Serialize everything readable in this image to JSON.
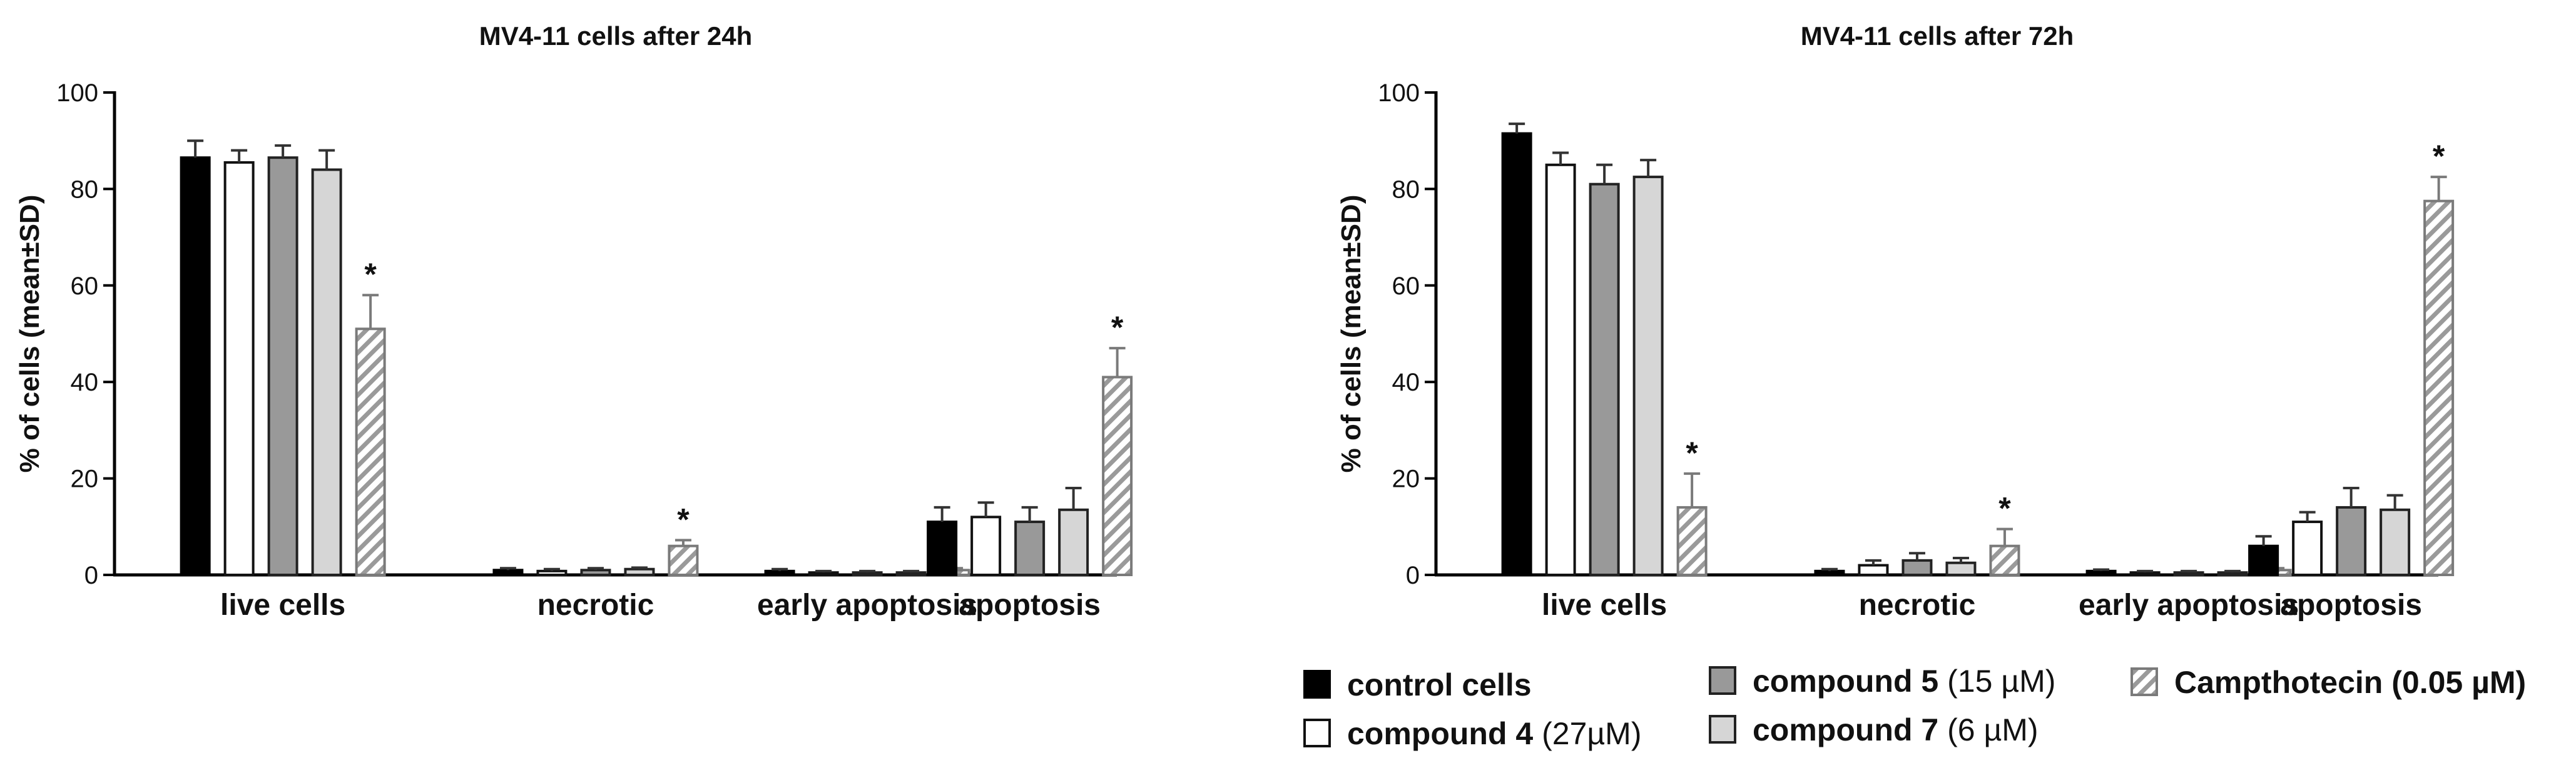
{
  "chart_data": [
    {
      "type": "bar",
      "title": "MV4-11 cells after 24h",
      "xlabel": "",
      "ylabel": "% of cells (mean±SD)",
      "ylim": [
        0,
        100
      ],
      "yticks": [
        "0",
        "20",
        "40",
        "60",
        "80",
        "100"
      ],
      "categories": [
        "live cells",
        "necrotic",
        "early apoptosis",
        "apoptosis"
      ],
      "series": [
        {
          "name": "control cells",
          "values": [
            86.5,
            1.0,
            0.8,
            11.0
          ],
          "errors": [
            3.5,
            0.4,
            0.4,
            3.0
          ],
          "stars": [
            false,
            false,
            false,
            false
          ]
        },
        {
          "name": "compound 4",
          "values": [
            85.5,
            0.8,
            0.5,
            12.0
          ],
          "errors": [
            2.5,
            0.4,
            0.3,
            3.0
          ],
          "stars": [
            false,
            false,
            false,
            false
          ]
        },
        {
          "name": "compound 5",
          "values": [
            86.5,
            1.0,
            0.5,
            11.0
          ],
          "errors": [
            2.5,
            0.4,
            0.3,
            3.0
          ],
          "stars": [
            false,
            false,
            false,
            false
          ]
        },
        {
          "name": "compound 7",
          "values": [
            84.0,
            1.2,
            0.5,
            13.5
          ],
          "errors": [
            4.0,
            0.3,
            0.3,
            4.5
          ],
          "stars": [
            false,
            false,
            false,
            false
          ]
        },
        {
          "name": "Campthotecin (0.05 µM)",
          "values": [
            51.0,
            6.0,
            1.0,
            41.0
          ],
          "errors": [
            7.0,
            1.2,
            0.4,
            6.0
          ],
          "stars": [
            true,
            true,
            false,
            true
          ]
        }
      ]
    },
    {
      "type": "bar",
      "title": "MV4-11 cells after 72h",
      "xlabel": "",
      "ylabel": "% of cells (mean±SD)",
      "ylim": [
        0,
        100
      ],
      "yticks": [
        "0",
        "20",
        "40",
        "60",
        "80",
        "100"
      ],
      "categories": [
        "live cells",
        "necrotic",
        "early apoptosis",
        "apoptosis"
      ],
      "series": [
        {
          "name": "control cells",
          "values": [
            91.5,
            0.8,
            0.8,
            6.0
          ],
          "errors": [
            2.0,
            0.4,
            0.3,
            2.0
          ],
          "stars": [
            false,
            false,
            false,
            false
          ]
        },
        {
          "name": "compound 4",
          "values": [
            85.0,
            2.0,
            0.5,
            11.0
          ],
          "errors": [
            2.5,
            1.0,
            0.3,
            2.0
          ],
          "stars": [
            false,
            false,
            false,
            false
          ]
        },
        {
          "name": "compound 5",
          "values": [
            81.0,
            3.0,
            0.5,
            14.0
          ],
          "errors": [
            4.0,
            1.5,
            0.3,
            4.0
          ],
          "stars": [
            false,
            false,
            false,
            false
          ]
        },
        {
          "name": "compound 7",
          "values": [
            82.5,
            2.5,
            0.5,
            13.5
          ],
          "errors": [
            3.5,
            1.0,
            0.3,
            3.0
          ],
          "stars": [
            false,
            false,
            false,
            false
          ]
        },
        {
          "name": "Campthotecin (0.05 µM)",
          "values": [
            14.0,
            6.0,
            1.0,
            77.5
          ],
          "errors": [
            7.0,
            3.5,
            0.4,
            5.0
          ],
          "stars": [
            true,
            true,
            false,
            true
          ]
        }
      ]
    }
  ],
  "legend": {
    "placement": "bottom-right",
    "items": [
      {
        "name": "control cells",
        "bold": "control cells",
        "rest": ""
      },
      {
        "name": "compound 4",
        "bold": "compound 4",
        "rest": " (27µM)"
      },
      {
        "name": "compound 5",
        "bold": "compound 5",
        "rest": " (15 µM)"
      },
      {
        "name": "compound 7",
        "bold": "compound 7",
        "rest": " (6 µM)"
      },
      {
        "name": "Campthotecin (0.05 µM)",
        "bold": "Campthotecin (0.05 µM)",
        "rest": ""
      }
    ]
  },
  "styles": {
    "fills": [
      "#000000",
      "#ffffff",
      "#999999",
      "#d6d6d6",
      "url(#hatch)"
    ],
    "strokes": [
      "#000000",
      "#111111",
      "#222222",
      "#222222",
      "#7a7a7a"
    ],
    "axis_color": "#000000",
    "errorbar_color": "#333333"
  }
}
